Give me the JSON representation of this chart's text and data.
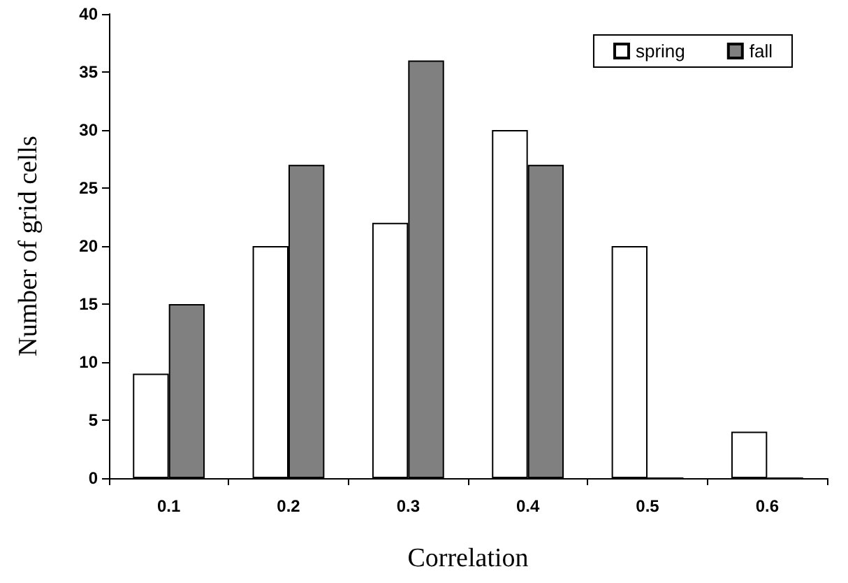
{
  "chart_data": {
    "type": "bar",
    "xlabel": "Correlation",
    "ylabel": "Number of grid cells",
    "categories": [
      "0.1",
      "0.2",
      "0.3",
      "0.4",
      "0.5",
      "0.6"
    ],
    "series": [
      {
        "name": "spring",
        "color": "#ffffff",
        "values": [
          9,
          20,
          22,
          30,
          20,
          4
        ]
      },
      {
        "name": "fall",
        "color": "#808080",
        "values": [
          15,
          27,
          36,
          27,
          0,
          0
        ]
      }
    ],
    "ylim": [
      0,
      40
    ],
    "yticks": [
      0,
      5,
      10,
      15,
      20,
      25,
      30,
      35,
      40
    ],
    "grid": false,
    "legend": "top right"
  }
}
